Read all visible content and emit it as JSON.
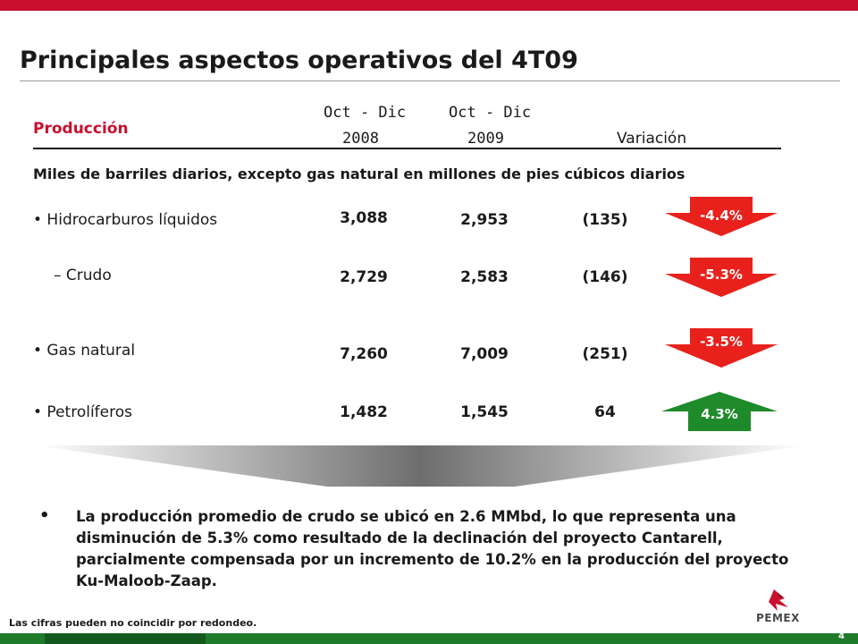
{
  "title": "Principales aspectos operativos del 4T09",
  "header": {
    "section": "Producción",
    "col1_line1": "Oct - Dic",
    "col1_line2": "2008",
    "col2_line1": "Oct - Dic",
    "col2_line2": "2009",
    "col3": "Variación"
  },
  "subtitle": "Miles de barriles diarios, excepto gas natural en millones de pies cúbicos diarios",
  "rows": [
    {
      "label": "• Hidrocarburos líquidos",
      "v2008": "3,088",
      "v2009": "2,953",
      "diff": "(135)",
      "pct": "-4.4%",
      "direction": "down"
    },
    {
      "label": "– Crudo",
      "v2008": "2,729",
      "v2009": "2,583",
      "diff": "(146)",
      "pct": "-5.3%",
      "direction": "down"
    },
    {
      "label": "• Gas natural",
      "v2008": "7,260",
      "v2009": "7,009",
      "diff": "(251)",
      "pct": "-3.5%",
      "direction": "down"
    },
    {
      "label": "• Petrolíferos",
      "v2008": "1,482",
      "v2009": "1,545",
      "diff": "64",
      "pct": "4.3%",
      "direction": "up"
    }
  ],
  "colors": {
    "red": "#e8211c",
    "green": "#1e8a2a",
    "brand_red": "#c8102e"
  },
  "bullet": {
    "marker": "•",
    "text": "La producción promedio de crudo se ubicó en 2.6 MMbd, lo que representa una disminución de 5.3% como resultado de la declinación del proyecto Cantarell, parcialmente compensada por un incremento de 10.2% en la producción del proyecto Ku-Maloob-Zaap."
  },
  "footnote": "Las cifras pueden no coincidir por redondeo.",
  "page_number": "4",
  "logo": {
    "text": "PEMEX",
    "icon": "pemex-eagle-icon"
  }
}
